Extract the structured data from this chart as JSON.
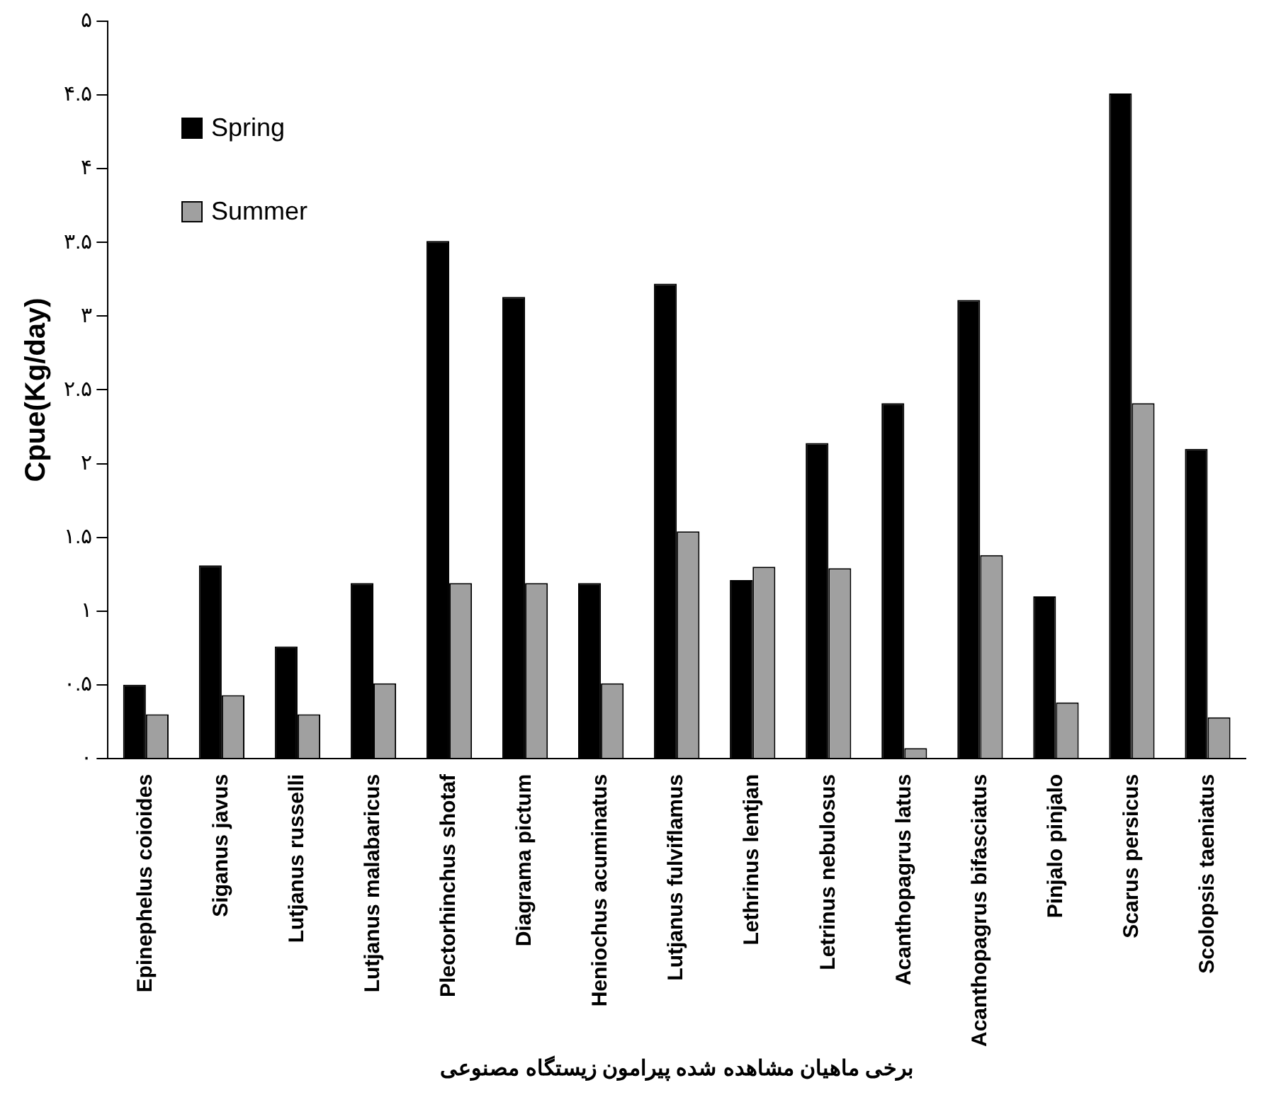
{
  "chart_data": {
    "type": "bar",
    "xlabel": "برخی ماهیان مشاهده شده پیرامون زیستگاه مصنوعی",
    "ylabel": "Cpue(Kg/day)",
    "categories": [
      "Epinephelus coioides",
      "Siganus javus",
      "Lutjanus russelli",
      "Lutjanus malabaricus",
      "Plectorhinchus shotaf",
      "Diagrama pictum",
      "Heniochus acuminatus",
      "Lutjanus fulviflamus",
      "Lethrinus lentjan",
      "Letrinus nebulosus",
      "Acanthopagrus latus",
      "Acanthopagrus bifasciatus",
      "Pinjalo pinjalo",
      "Scarus persicus",
      "Scolopsis taeniatus"
    ],
    "series": [
      {
        "name": "Spring",
        "color": "#000000",
        "values": [
          0.5,
          1.31,
          0.76,
          1.19,
          3.51,
          3.13,
          1.19,
          3.22,
          1.21,
          2.14,
          2.41,
          3.11,
          1.1,
          4.51,
          2.1
        ]
      },
      {
        "name": "Summer",
        "color": "#a0a0a0",
        "values": [
          0.3,
          0.43,
          0.3,
          0.51,
          1.19,
          1.19,
          0.51,
          1.54,
          1.3,
          1.29,
          0.07,
          1.38,
          0.38,
          2.41,
          0.28
        ]
      }
    ],
    "ylim": [
      0,
      5
    ],
    "yticks": [
      {
        "value": 0,
        "label": "۰"
      },
      {
        "value": 0.5,
        "label": "۰.۵"
      },
      {
        "value": 1,
        "label": "۱"
      },
      {
        "value": 1.5,
        "label": "۱.۵"
      },
      {
        "value": 2,
        "label": "۲"
      },
      {
        "value": 2.5,
        "label": "۲.۵"
      },
      {
        "value": 3,
        "label": "۳"
      },
      {
        "value": 3.5,
        "label": "۳.۵"
      },
      {
        "value": 4,
        "label": "۴"
      },
      {
        "value": 4.5,
        "label": "۴.۵"
      },
      {
        "value": 5,
        "label": "۵"
      }
    ],
    "grid": false,
    "legend": "top left"
  }
}
